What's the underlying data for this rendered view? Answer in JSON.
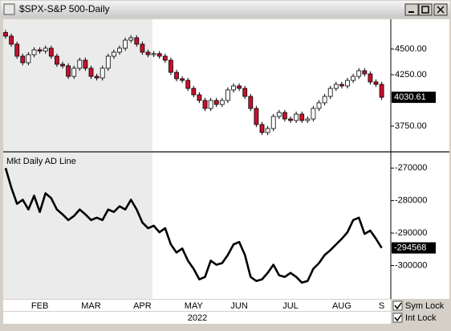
{
  "window_title": "$SPX-S&P 500-Daily",
  "chart_data": [
    {
      "type": "candlestick",
      "categories": [
        null,
        null,
        null,
        null,
        null,
        null,
        "FEB",
        null,
        null,
        null,
        null,
        null,
        null,
        null,
        null,
        "MAR",
        null,
        null,
        null,
        null,
        null,
        null,
        null,
        null,
        "APR",
        null,
        null,
        null,
        null,
        null,
        null,
        null,
        null,
        "MAY",
        null,
        null,
        null,
        null,
        null,
        null,
        null,
        "JUN",
        null,
        null,
        null,
        null,
        null,
        null,
        null,
        null,
        "JUL",
        null,
        null,
        null,
        null,
        null,
        null,
        null,
        null,
        "AUG",
        null,
        null,
        null,
        null,
        null,
        null,
        "S"
      ],
      "open": [
        4660,
        4625,
        4547,
        4430,
        4367,
        4445,
        4492,
        4480,
        4508,
        4430,
        4352,
        4336,
        4234,
        4313,
        4391,
        4313,
        4234,
        4219,
        4313,
        4430,
        4469,
        4508,
        4586,
        4609,
        4547,
        4469,
        4445,
        4455,
        4430,
        4391,
        4273,
        4211,
        4195,
        4117,
        4055,
        4000,
        3922,
        4000,
        3961,
        4000,
        4102,
        4141,
        4117,
        4039,
        3922,
        3766,
        3688,
        3727,
        3844,
        3883,
        3820,
        3805,
        3867,
        3805,
        3820,
        3922,
        3977,
        4039,
        4117,
        4156,
        4141,
        4195,
        4234,
        4289,
        4258,
        4180,
        4156
      ],
      "high": [
        4685,
        4650,
        4572,
        4455,
        4470,
        4517,
        4517,
        4533,
        4533,
        4455,
        4377,
        4361,
        4338,
        4416,
        4416,
        4338,
        4259,
        4338,
        4455,
        4494,
        4533,
        4611,
        4634,
        4634,
        4572,
        4494,
        4480,
        4480,
        4455,
        4416,
        4298,
        4236,
        4220,
        4142,
        4080,
        4025,
        4025,
        4025,
        4025,
        4127,
        4166,
        4166,
        4142,
        4064,
        3947,
        3791,
        3752,
        3869,
        3908,
        3908,
        3845,
        3892,
        3892,
        3845,
        3947,
        4002,
        4064,
        4142,
        4181,
        4181,
        4220,
        4259,
        4314,
        4314,
        4283,
        4205,
        4181
      ],
      "low": [
        4600,
        4522,
        4405,
        4342,
        4342,
        4420,
        4455,
        4455,
        4405,
        4327,
        4311,
        4209,
        4209,
        4288,
        4288,
        4209,
        4194,
        4194,
        4288,
        4405,
        4444,
        4483,
        4561,
        4522,
        4444,
        4420,
        4420,
        4405,
        4366,
        4248,
        4186,
        4170,
        4092,
        4030,
        3975,
        3897,
        3897,
        3936,
        3936,
        3975,
        4077,
        4092,
        4014,
        3897,
        3741,
        3663,
        3663,
        3702,
        3819,
        3795,
        3780,
        3780,
        3780,
        3780,
        3795,
        3897,
        3952,
        4014,
        4092,
        4116,
        4116,
        4170,
        4209,
        4233,
        4155,
        4131,
        4005
      ],
      "close": [
        4625,
        4547,
        4430,
        4367,
        4445,
        4492,
        4480,
        4508,
        4430,
        4352,
        4336,
        4234,
        4313,
        4391,
        4313,
        4234,
        4219,
        4313,
        4430,
        4469,
        4508,
        4586,
        4609,
        4547,
        4469,
        4445,
        4455,
        4430,
        4391,
        4273,
        4211,
        4195,
        4117,
        4055,
        4000,
        3922,
        4000,
        3961,
        4000,
        4102,
        4141,
        4117,
        4039,
        3922,
        3766,
        3688,
        3727,
        3844,
        3883,
        3820,
        3805,
        3867,
        3805,
        3820,
        3922,
        3977,
        4039,
        4117,
        4156,
        4141,
        4195,
        4234,
        4289,
        4258,
        4180,
        4156,
        4030.61
      ],
      "up_color": "#ffffff",
      "down_color": "#c8102e",
      "ylim": [
        3508,
        4789
      ],
      "yticks": [
        {
          "value": 4500,
          "label": "4500.00"
        },
        {
          "value": 4250,
          "label": "4250.00"
        },
        {
          "value": 3750,
          "label": "3750.00"
        }
      ]
    },
    {
      "type": "line",
      "title": "Mkt Daily AD Line",
      "color": "#000000",
      "values": [
        -270000,
        -276000,
        -281000,
        -279750,
        -282750,
        -278500,
        -283500,
        -277750,
        -279250,
        -282750,
        -284250,
        -286000,
        -284750,
        -282750,
        -284250,
        -286000,
        -285250,
        -286000,
        -282750,
        -283500,
        -281750,
        -282750,
        -279750,
        -282750,
        -286750,
        -288500,
        -287750,
        -289750,
        -288500,
        -293500,
        -296000,
        -294750,
        -298500,
        -301000,
        -304250,
        -303500,
        -298500,
        -299750,
        -299250,
        -296750,
        -293500,
        -292750,
        -296750,
        -303500,
        -304750,
        -304250,
        -302250,
        -299750,
        -303000,
        -303500,
        -302250,
        -303500,
        -305250,
        -304750,
        -301000,
        -299250,
        -296750,
        -295250,
        -293500,
        -291750,
        -289750,
        -286000,
        -285250,
        -290250,
        -289250,
        -291750,
        -294568
      ],
      "ylim": [
        -310250,
        -265250
      ],
      "yticks": [
        -270000,
        -280000,
        -290000,
        -300000
      ]
    }
  ],
  "year_label": "2022",
  "controls": [
    "Sym Lock",
    "Int Lock"
  ]
}
